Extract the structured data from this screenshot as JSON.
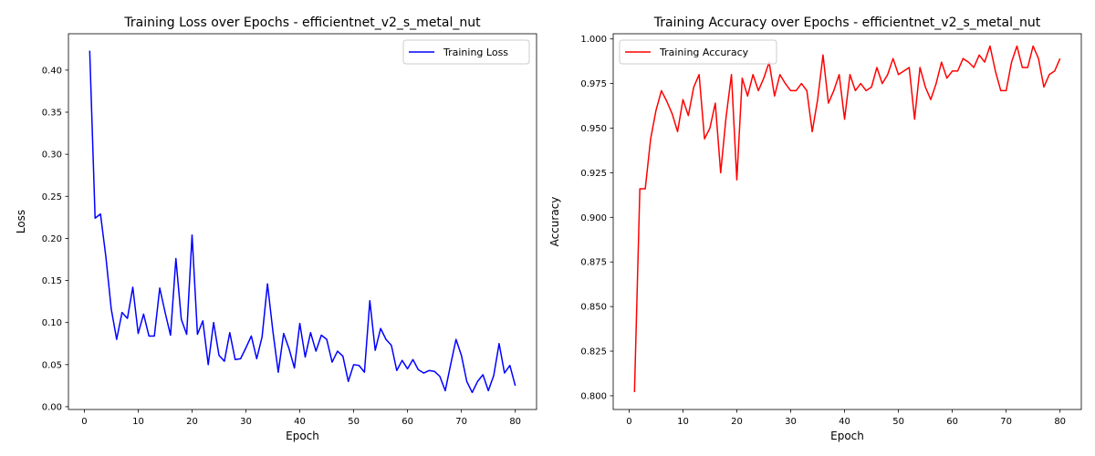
{
  "chart_data": [
    {
      "type": "line",
      "title": "Training Loss over Epochs - efficientnet_v2_s_metal_nut",
      "xlabel": "Epoch",
      "ylabel": "Loss",
      "xlim": [
        -2.95,
        83.95
      ],
      "ylim": [
        -0.0033,
        0.4432
      ],
      "xticks": [
        0,
        10,
        20,
        30,
        40,
        50,
        60,
        70,
        80
      ],
      "yticks": [
        0.0,
        0.05,
        0.1,
        0.15,
        0.2,
        0.25,
        0.3,
        0.35,
        0.4
      ],
      "ytick_labels": [
        "0.00",
        "0.05",
        "0.10",
        "0.15",
        "0.20",
        "0.25",
        "0.30",
        "0.35",
        "0.40"
      ],
      "legend_position": "upper right",
      "series": [
        {
          "name": "Training Loss",
          "color": "#0000ff",
          "x": [
            1,
            2,
            3,
            4,
            5,
            6,
            7,
            8,
            9,
            10,
            11,
            12,
            13,
            14,
            15,
            16,
            17,
            18,
            19,
            20,
            21,
            22,
            23,
            24,
            25,
            26,
            27,
            28,
            29,
            30,
            31,
            32,
            33,
            34,
            35,
            36,
            37,
            38,
            39,
            40,
            41,
            42,
            43,
            44,
            45,
            46,
            47,
            48,
            49,
            50,
            51,
            52,
            53,
            54,
            55,
            56,
            57,
            58,
            59,
            60,
            61,
            62,
            63,
            64,
            65,
            66,
            67,
            68,
            69,
            70,
            71,
            72,
            73,
            74,
            75,
            76,
            77,
            78,
            79,
            80
          ],
          "values": [
            0.423,
            0.224,
            0.229,
            0.178,
            0.116,
            0.08,
            0.112,
            0.105,
            0.142,
            0.087,
            0.11,
            0.084,
            0.084,
            0.141,
            0.112,
            0.085,
            0.176,
            0.104,
            0.086,
            0.204,
            0.086,
            0.102,
            0.05,
            0.1,
            0.061,
            0.054,
            0.088,
            0.056,
            0.057,
            0.07,
            0.084,
            0.057,
            0.083,
            0.146,
            0.09,
            0.041,
            0.087,
            0.069,
            0.046,
            0.099,
            0.059,
            0.088,
            0.066,
            0.085,
            0.08,
            0.053,
            0.066,
            0.06,
            0.03,
            0.05,
            0.049,
            0.041,
            0.126,
            0.067,
            0.093,
            0.08,
            0.073,
            0.043,
            0.055,
            0.045,
            0.056,
            0.044,
            0.04,
            0.043,
            0.042,
            0.036,
            0.019,
            0.05,
            0.08,
            0.061,
            0.03,
            0.017,
            0.03,
            0.038,
            0.019,
            0.037,
            0.075,
            0.04,
            0.049,
            0.025
          ]
        }
      ]
    },
    {
      "type": "line",
      "title": "Training Accuracy over Epochs - efficientnet_v2_s_metal_nut",
      "xlabel": "Epoch",
      "ylabel": "Accuracy",
      "xlim": [
        -2.95,
        83.95
      ],
      "ylim": [
        0.7923,
        1.0029
      ],
      "xticks": [
        0,
        10,
        20,
        30,
        40,
        50,
        60,
        70,
        80
      ],
      "yticks": [
        0.8,
        0.825,
        0.85,
        0.875,
        0.9,
        0.925,
        0.95,
        0.975,
        1.0
      ],
      "ytick_labels": [
        "0.800",
        "0.825",
        "0.850",
        "0.875",
        "0.900",
        "0.925",
        "0.950",
        "0.975",
        "1.000"
      ],
      "legend_position": "upper left",
      "series": [
        {
          "name": "Training Accuracy",
          "color": "#ff0000",
          "x": [
            1,
            2,
            3,
            4,
            5,
            6,
            7,
            8,
            9,
            10,
            11,
            12,
            13,
            14,
            15,
            16,
            17,
            18,
            19,
            20,
            21,
            22,
            23,
            24,
            25,
            26,
            27,
            28,
            29,
            30,
            31,
            32,
            33,
            34,
            35,
            36,
            37,
            38,
            39,
            40,
            41,
            42,
            43,
            44,
            45,
            46,
            47,
            48,
            49,
            50,
            51,
            52,
            53,
            54,
            55,
            56,
            57,
            58,
            59,
            60,
            61,
            62,
            63,
            64,
            65,
            66,
            67,
            68,
            69,
            70,
            71,
            72,
            73,
            74,
            75,
            76,
            77,
            78,
            79,
            80
          ],
          "values": [
            0.802,
            0.916,
            0.916,
            0.944,
            0.96,
            0.971,
            0.965,
            0.958,
            0.948,
            0.966,
            0.957,
            0.973,
            0.98,
            0.944,
            0.95,
            0.964,
            0.925,
            0.956,
            0.98,
            0.921,
            0.978,
            0.968,
            0.98,
            0.971,
            0.978,
            0.987,
            0.968,
            0.98,
            0.975,
            0.971,
            0.971,
            0.975,
            0.971,
            0.948,
            0.966,
            0.991,
            0.964,
            0.971,
            0.98,
            0.955,
            0.98,
            0.971,
            0.975,
            0.971,
            0.973,
            0.984,
            0.975,
            0.98,
            0.989,
            0.98,
            0.982,
            0.984,
            0.955,
            0.984,
            0.973,
            0.966,
            0.975,
            0.987,
            0.978,
            0.982,
            0.982,
            0.989,
            0.987,
            0.984,
            0.991,
            0.987,
            0.996,
            0.982,
            0.971,
            0.971,
            0.987,
            0.996,
            0.984,
            0.984,
            0.996,
            0.989,
            0.973,
            0.98,
            0.982,
            0.989
          ]
        }
      ]
    }
  ]
}
